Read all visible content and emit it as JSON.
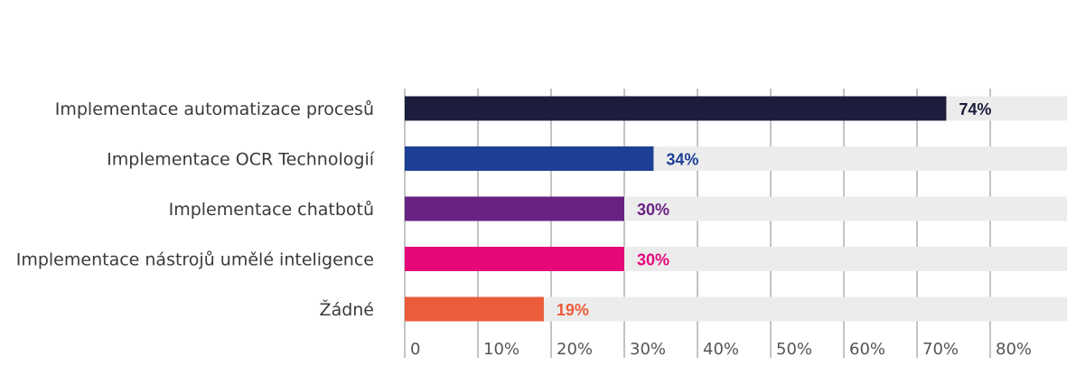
{
  "chart_data": {
    "type": "bar",
    "orientation": "horizontal",
    "title": "",
    "xlabel": "",
    "ylabel": "",
    "categories": [
      "Implementace automatizace procesů",
      "Implementace OCR Technologií",
      "Implementace chatbotů",
      "Implementace nástrojů umělé inteligence",
      "Žádné"
    ],
    "values": [
      74,
      34,
      30,
      30,
      19
    ],
    "value_labels": [
      "74%",
      "34%",
      "30%",
      "30%",
      "19%"
    ],
    "colors": [
      "#1c1c3c",
      "#1e3f96",
      "#692182",
      "#e6087a",
      "#ec5c3b"
    ],
    "label_colors": [
      "#1c1c3c",
      "#1e3f96",
      "#692182",
      "#e6087a",
      "#ec5c3b"
    ],
    "track_color": "#ececec",
    "xlim": [
      0,
      90
    ],
    "x_ticks": [
      0,
      10,
      20,
      30,
      40,
      50,
      60,
      70,
      80
    ],
    "x_tick_labels": [
      "0",
      "10%",
      "20%",
      "30%",
      "40%",
      "50%",
      "60%",
      "70%",
      "80%"
    ],
    "grid": true,
    "legend": "none"
  }
}
